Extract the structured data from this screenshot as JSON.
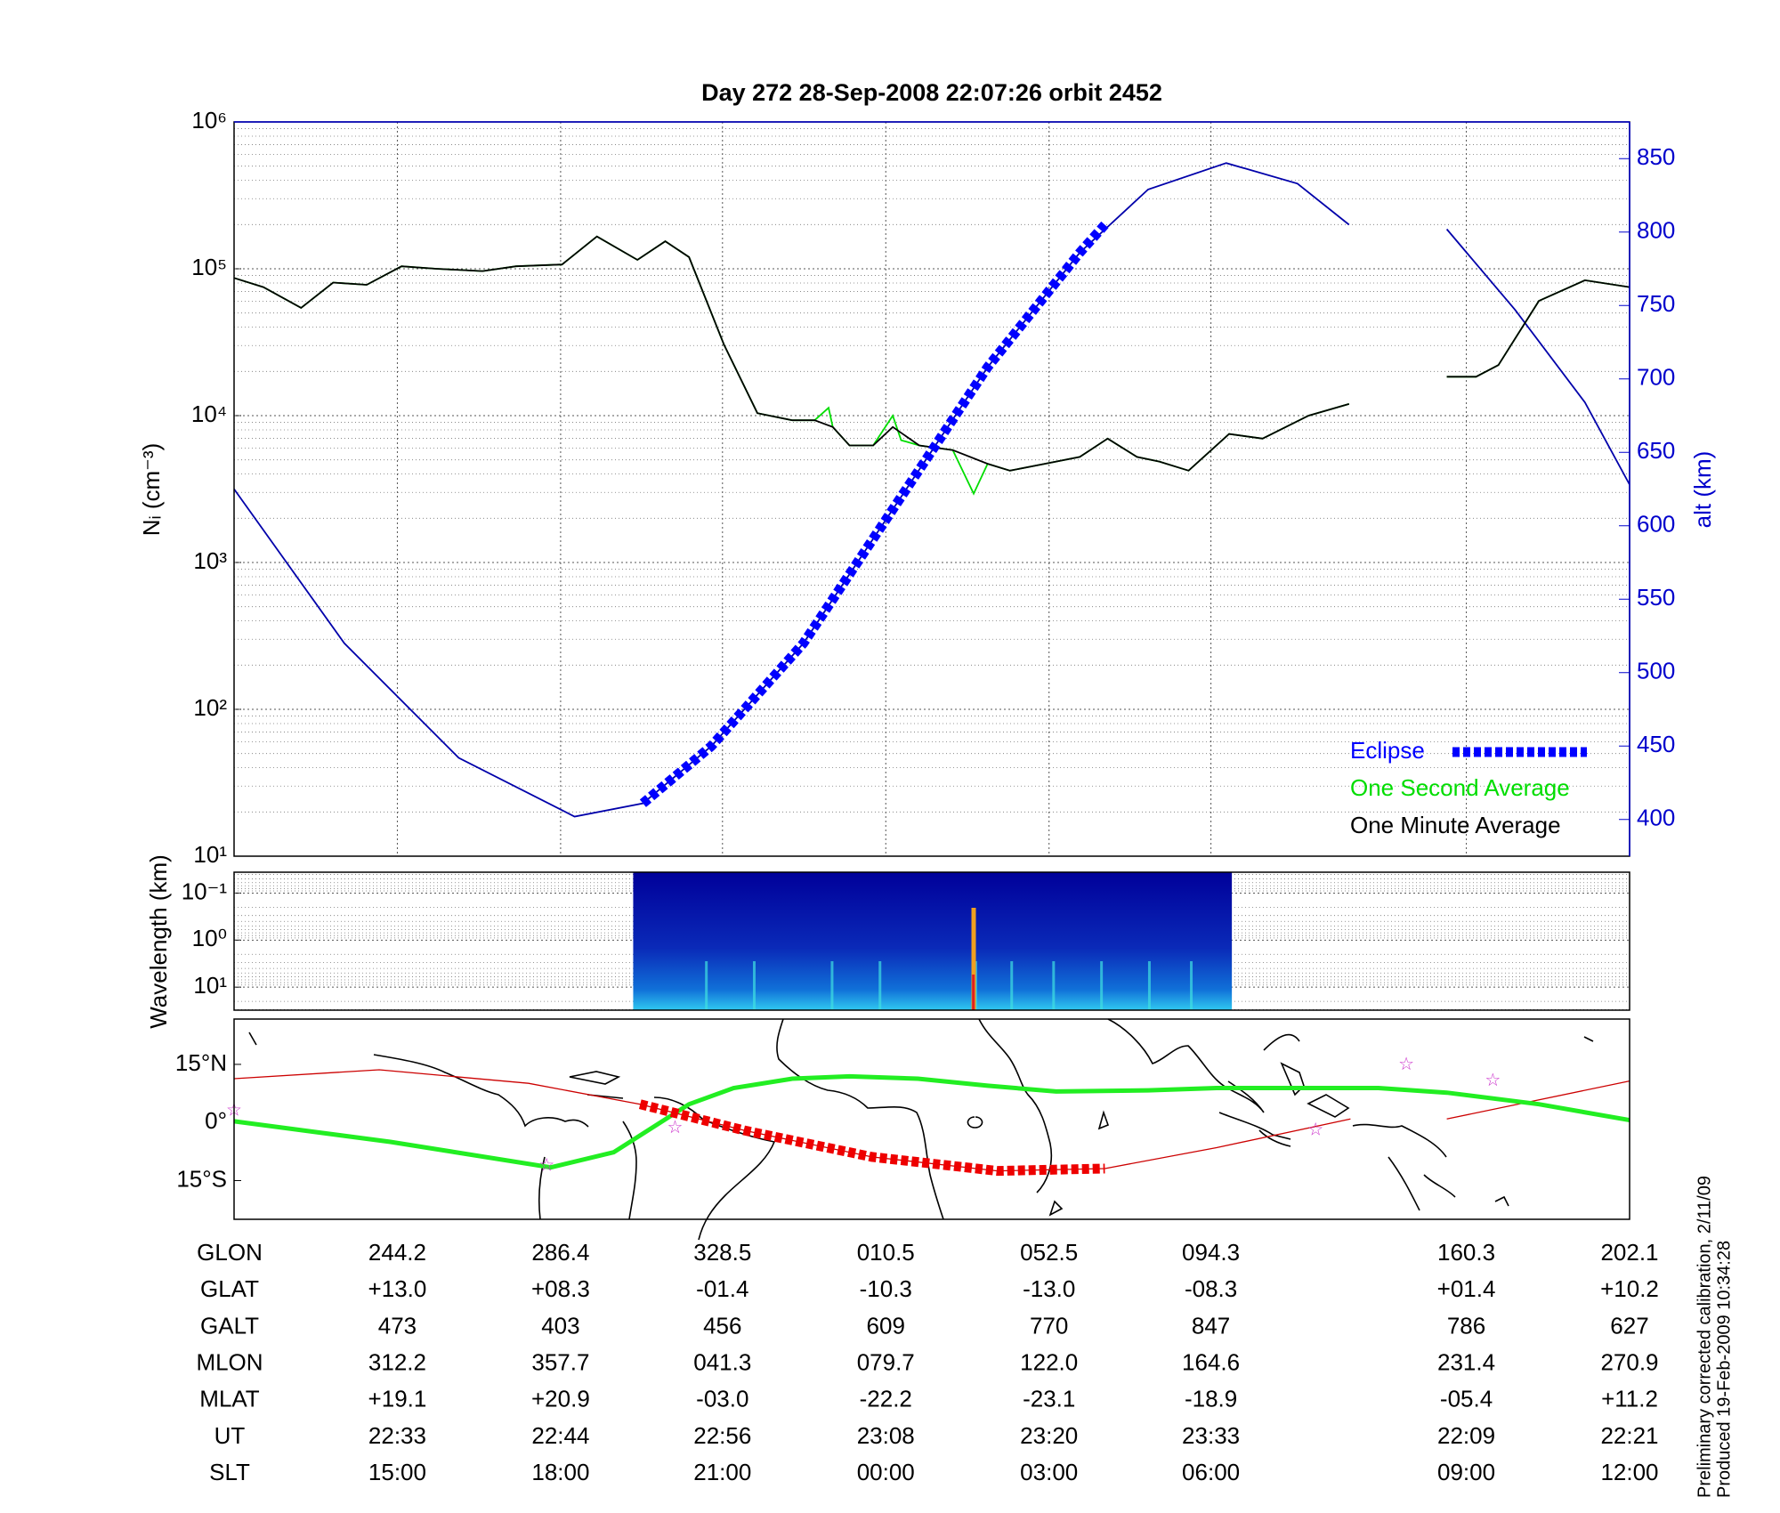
{
  "chart_data": [
    {
      "type": "line",
      "title": "Day 272  28-Sep-2008 22:07:26   orbit 2452",
      "ylabel": "Nᵢ (cm⁻³)",
      "y2label": "alt (km)",
      "log_y": true,
      "grid": true,
      "minor_grid": true,
      "legend": "lower right",
      "xlim": [
        0,
        1
      ],
      "xticks": [
        0.117,
        0.234,
        0.35,
        0.467,
        0.584,
        0.7,
        0.883,
        1
      ],
      "ylim": [
        10,
        1000000
      ],
      "yticks": [
        {
          "value": 10,
          "label": "10¹"
        },
        {
          "value": 100,
          "label": "10²"
        },
        {
          "value": 1000,
          "label": "10³"
        },
        {
          "value": 10000,
          "label": "10⁴"
        },
        {
          "value": 100000,
          "label": "10⁵"
        },
        {
          "value": 1000000,
          "label": "10⁶"
        }
      ],
      "y2lim": [
        375,
        875
      ],
      "y2ticks": [
        400,
        450,
        500,
        550,
        600,
        650,
        700,
        750,
        800,
        850
      ],
      "series": [
        {
          "color": "#0000aa",
          "axis": "y2",
          "x": [
            0,
            0.079,
            0.161,
            0.244,
            0.293,
            0.342,
            0.408,
            0.474,
            0.54,
            0.606,
            0.655,
            0.711,
            0.762,
            0.799,
            null,
            0.869,
            0.918,
            0.968,
            1
          ],
          "values": [
            625,
            520,
            442,
            402,
            411,
            450,
            520,
            614,
            708,
            786,
            829,
            847,
            833,
            805,
            null,
            802,
            747,
            684,
            628
          ]
        },
        {
          "name": "One Second Average",
          "color": "#00dd00",
          "x": [
            0,
            0.021,
            0.048,
            0.071,
            0.095,
            0.12,
            0.145,
            0.178,
            0.202,
            0.235,
            0.26,
            0.289,
            0.309,
            0.326,
            0.351,
            0.375,
            0.4,
            0.416,
            0.426,
            0.429,
            0.441,
            0.458,
            0.472,
            0.478,
            0.491,
            0.515,
            0.53,
            0.54,
            0.556,
            0.581,
            0.606,
            0.626,
            0.647,
            0.663,
            0.684,
            0.713,
            0.737,
            0.77,
            0.799,
            null,
            0.869,
            0.89,
            0.906,
            0.935,
            0.968,
            1
          ],
          "values": [
            86600,
            75000,
            54200,
            80600,
            77800,
            104000,
            100000,
            96500,
            104000,
            107000,
            166000,
            115000,
            154000,
            120000,
            30500,
            10400,
            9300,
            9300,
            11300,
            8360,
            6270,
            6270,
            10000,
            6800,
            6270,
            5830,
            2940,
            4700,
            4220,
            4700,
            5230,
            6980,
            5230,
            4870,
            4220,
            7500,
            6980,
            10000,
            12000,
            null,
            18400,
            18400,
            22100,
            60400,
            83500,
            75000
          ]
        },
        {
          "name": "One Minute Average",
          "color": "#000000",
          "x": [
            0,
            0.021,
            0.048,
            0.071,
            0.095,
            0.12,
            0.145,
            0.178,
            0.202,
            0.235,
            0.26,
            0.289,
            0.309,
            0.326,
            0.351,
            0.375,
            0.4,
            0.416,
            0.429,
            0.441,
            0.458,
            0.472,
            0.491,
            0.515,
            0.54,
            0.556,
            0.581,
            0.606,
            0.626,
            0.647,
            0.663,
            0.684,
            0.713,
            0.737,
            0.77,
            0.799,
            null,
            0.869,
            0.89,
            0.906,
            0.935,
            0.968,
            1
          ],
          "values": [
            86600,
            75000,
            54200,
            80600,
            77800,
            104000,
            100000,
            96500,
            104000,
            107000,
            166000,
            115000,
            154000,
            120000,
            30500,
            10400,
            9300,
            9300,
            8360,
            6270,
            6270,
            8360,
            6270,
            5830,
            4700,
            4220,
            4700,
            5230,
            6980,
            5230,
            4870,
            4220,
            7500,
            6980,
            10000,
            12000,
            null,
            18400,
            18400,
            22100,
            60400,
            83500,
            75000
          ]
        },
        {
          "name": "Eclipse",
          "color": "#0000ff",
          "axis": "y2",
          "dashed": true,
          "x": [
            0.293,
            0.342,
            0.408,
            0.474,
            0.54,
            0.606,
            0.624
          ],
          "values": [
            411,
            450,
            520,
            614,
            708,
            786,
            805
          ]
        }
      ]
    },
    {
      "type": "spectrogram",
      "ylabel": "Wavelength (km)",
      "log_y": true,
      "y_inverted": true,
      "minor_grid": true,
      "xlim": [
        0,
        1
      ],
      "xticks": [
        0.117,
        0.234,
        0.35,
        0.467,
        0.584,
        0.7,
        0.883,
        1
      ],
      "ylim": [
        0.036,
        30.8
      ],
      "yticks": [
        {
          "value": 0.1,
          "label": "10⁻¹"
        },
        {
          "value": 1,
          "label": "10⁰"
        },
        {
          "value": 10,
          "label": "10¹"
        }
      ],
      "data_x": [
        0.286,
        0.715
      ]
    },
    {
      "type": "map",
      "xlim": [
        0,
        1
      ],
      "ylim": [
        -25,
        26.7
      ],
      "yticks": [
        {
          "value": 15,
          "label": "15°N"
        },
        {
          "value": 0,
          "label": "0°"
        },
        {
          "value": -15,
          "label": "15°S"
        }
      ],
      "series": [
        {
          "color": "#cc0000",
          "x": [
            0,
            0.104,
            0.211,
            0.291,
            0.366,
            0.457,
            0.547,
            0.624,
            0.704,
            0.8,
            null,
            0.869,
            1
          ],
          "values": [
            11.3,
            13.6,
            10.1,
            4.7,
            -2.1,
            -8.9,
            -12.5,
            -11.9,
            -6.5,
            0.9,
            null,
            0.9,
            10.7
          ]
        },
        {
          "color": "#22ee22",
          "x": [
            0,
            0.112,
            0.227,
            0.272,
            0.326,
            0.358,
            0.4,
            0.441,
            0.49,
            0.54,
            0.589,
            0.655,
            0.704,
            0.82,
            0.869,
            0.935,
            1
          ],
          "values": [
            0.3,
            -5.0,
            -11.6,
            -7.7,
            4.7,
            8.9,
            11.3,
            11.9,
            11.3,
            9.5,
            8.0,
            8.3,
            8.9,
            8.9,
            7.7,
            4.7,
            0.6
          ]
        },
        {
          "color": "#ee0000",
          "dashed": true,
          "x": [
            0.291,
            0.366,
            0.457,
            0.547,
            0.624
          ],
          "values": [
            4.7,
            -2.1,
            -8.9,
            -12.5,
            -11.9
          ]
        }
      ],
      "stars": {
        "color": "#cc33cc",
        "x": [
          0,
          0.224,
          0.316,
          0.775,
          0.84,
          0.902
        ],
        "values": [
          3.0,
          -11.3,
          -1.5,
          -2.1,
          14.8,
          10.7
        ]
      }
    }
  ],
  "table": {
    "rows": [
      {
        "label": "GLON",
        "values": [
          "244.2",
          "286.4",
          "328.5",
          "010.5",
          "052.5",
          "094.3",
          "160.3",
          "202.1"
        ]
      },
      {
        "label": "GLAT",
        "values": [
          "+13.0",
          "+08.3",
          "-01.4",
          "-10.3",
          "-13.0",
          "-08.3",
          "+01.4",
          "+10.2"
        ]
      },
      {
        "label": "GALT",
        "values": [
          "473",
          "403",
          "456",
          "609",
          "770",
          "847",
          "786",
          "627"
        ]
      },
      {
        "label": "MLON",
        "values": [
          "312.2",
          "357.7",
          "041.3",
          "079.7",
          "122.0",
          "164.6",
          "231.4",
          "270.9"
        ]
      },
      {
        "label": "MLAT",
        "values": [
          "+19.1",
          "+20.9",
          "-03.0",
          "-22.2",
          "-23.1",
          "-18.9",
          "-05.4",
          "+11.2"
        ]
      },
      {
        "label": "UT",
        "values": [
          "22:33",
          "22:44",
          "22:56",
          "23:08",
          "23:20",
          "23:33",
          "22:09",
          "22:21"
        ]
      },
      {
        "label": "SLT",
        "values": [
          "15:00",
          "18:00",
          "21:00",
          "00:00",
          "03:00",
          "06:00",
          "09:00",
          "12:00"
        ]
      }
    ]
  },
  "notes": [
    "Preliminary corrected calibration, 2/11/09",
    "Produced 19-Feb-2009 10:34:28"
  ]
}
